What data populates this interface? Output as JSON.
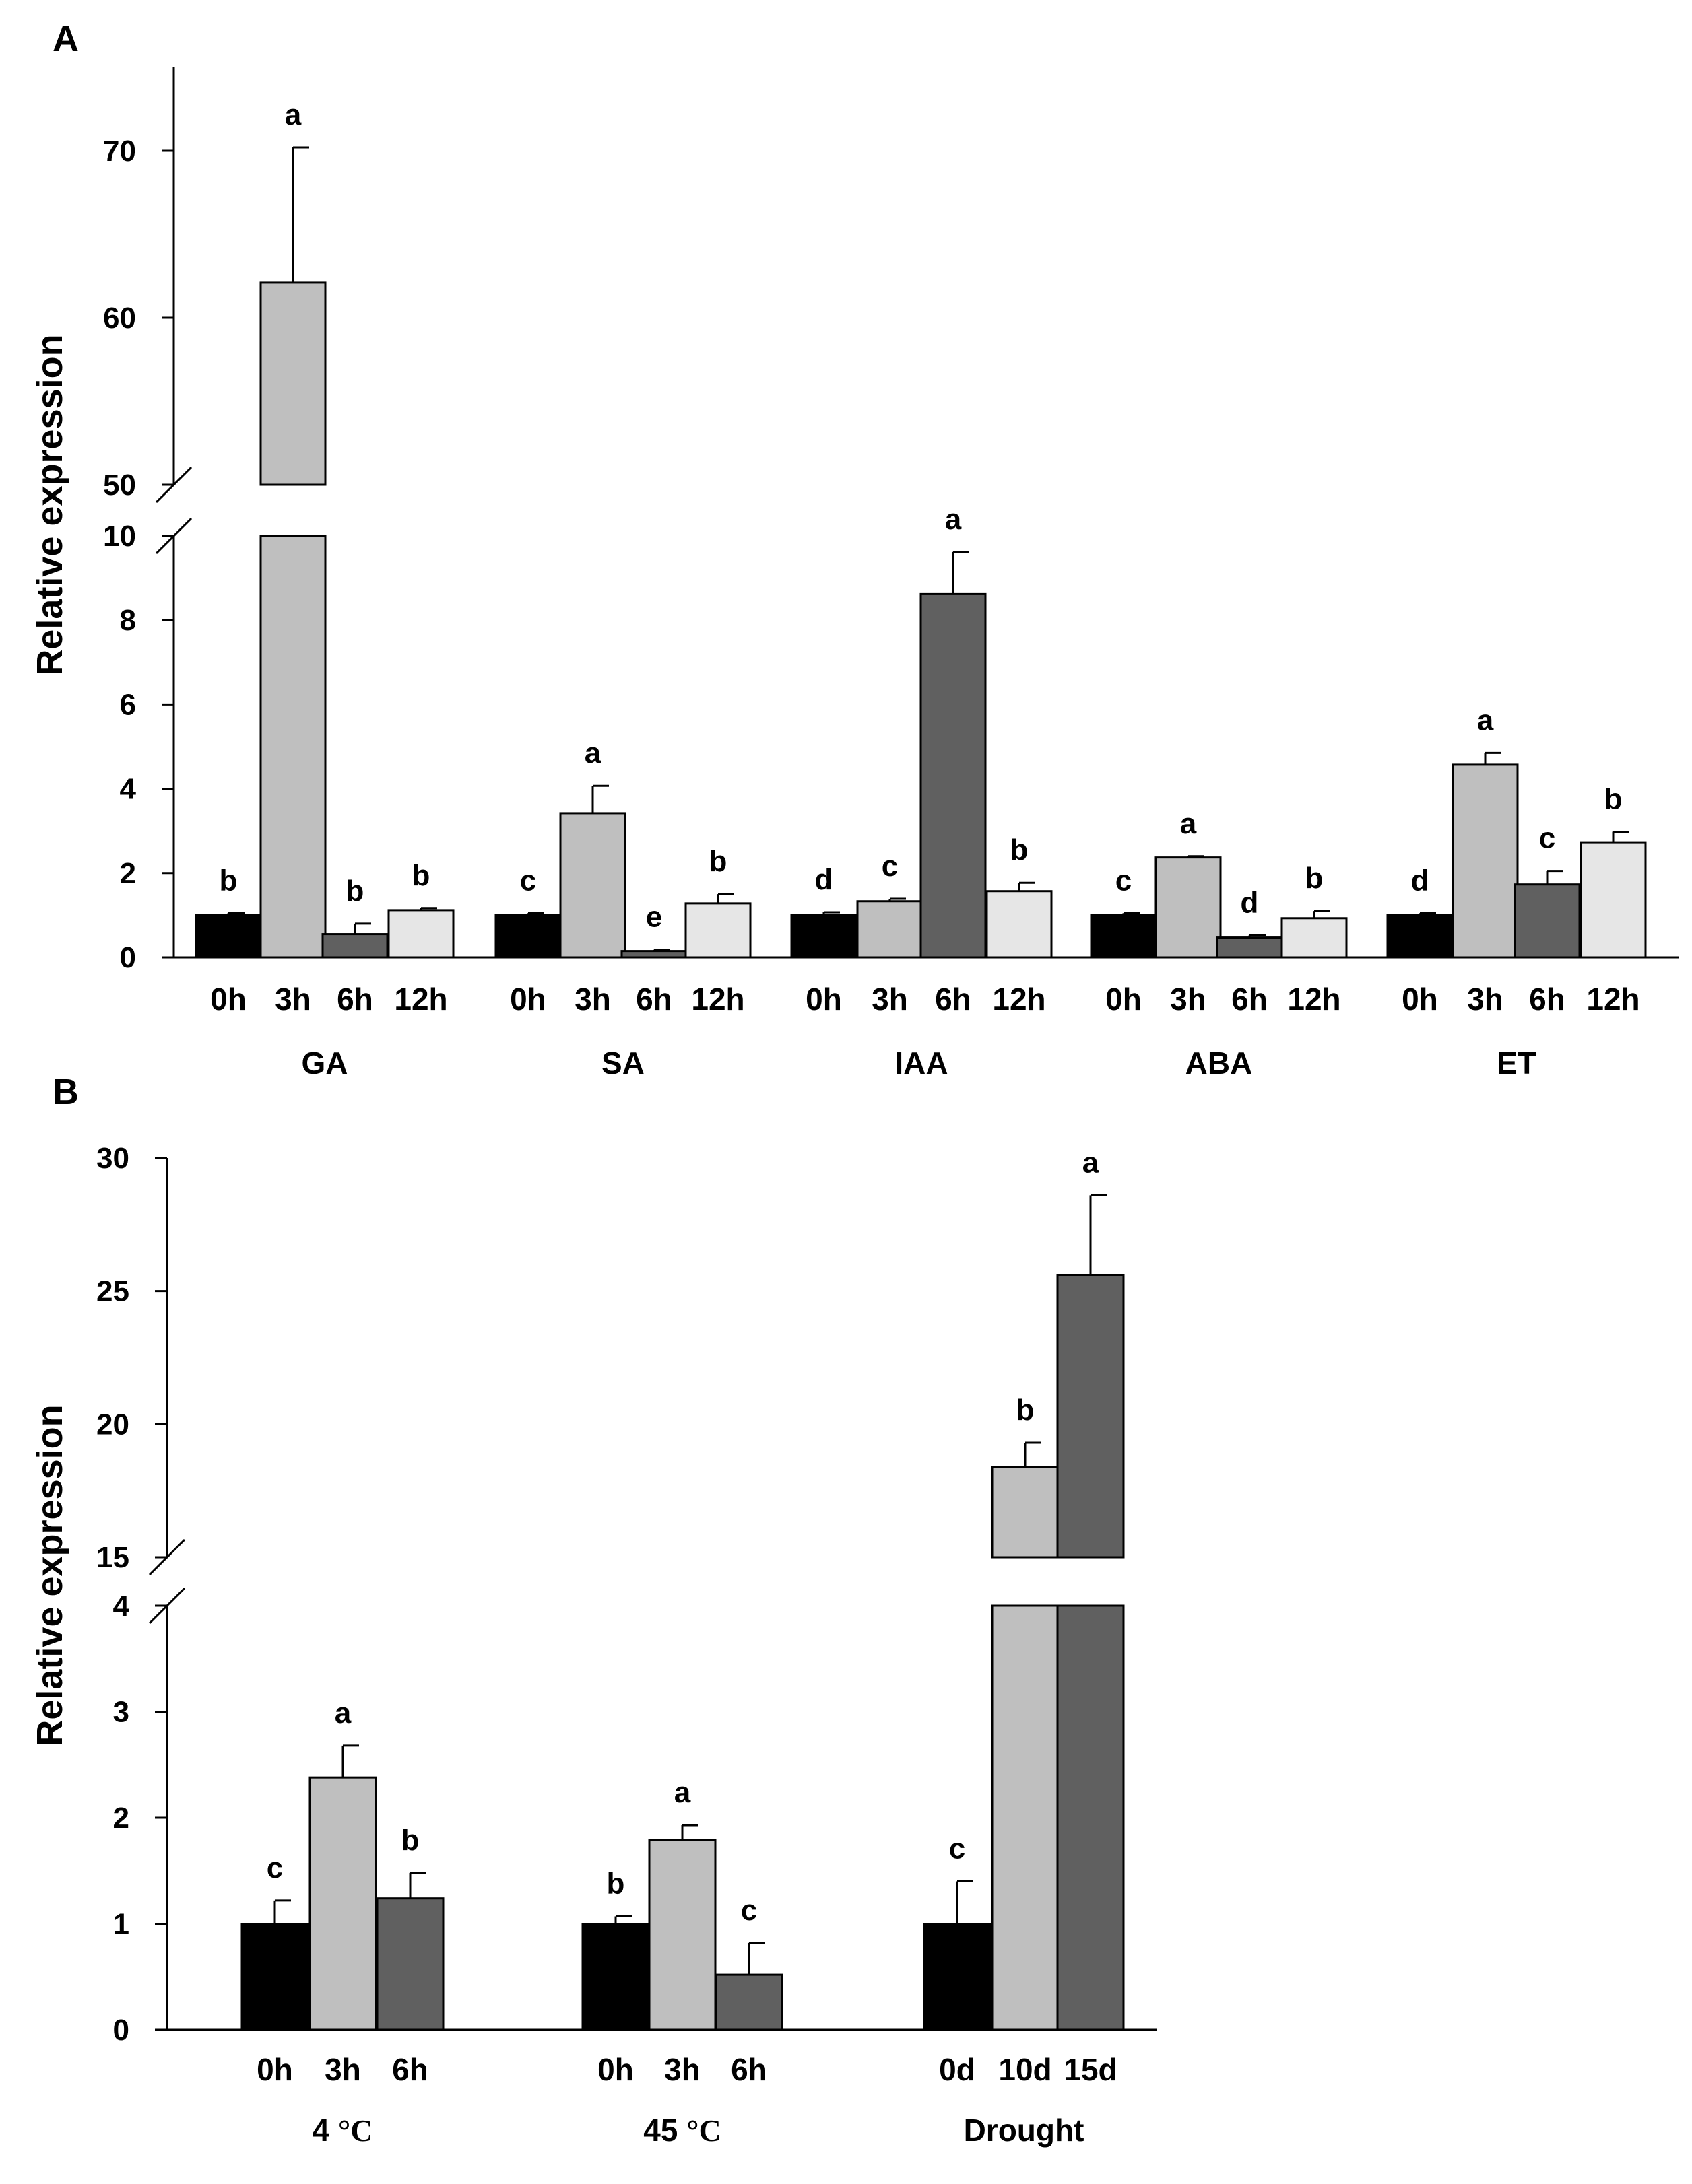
{
  "chart_data": [
    {
      "type": "bar",
      "panel_label": "A",
      "ylabel": "Relative expression",
      "axis_break": {
        "lower_range": [
          0,
          10
        ],
        "upper_range": [
          50,
          75
        ]
      },
      "lower_ticks": [
        "0",
        "2",
        "4",
        "6",
        "8",
        "10"
      ],
      "upper_ticks": [
        "50",
        "60",
        "70"
      ],
      "colors": {
        "0h": "#000000",
        "3h": "#bfbfbf",
        "6h": "#606060",
        "12h": "#e6e6e6"
      },
      "groups": [
        {
          "name": "GA",
          "bars": [
            {
              "label": "0h",
              "value": 1.0,
              "error": 0.05,
              "sig": "b"
            },
            {
              "label": "3h",
              "value": 62.1,
              "error": 8.1,
              "sig": "a"
            },
            {
              "label": "6h",
              "value": 0.55,
              "error": 0.25,
              "sig": "b"
            },
            {
              "label": "12h",
              "value": 1.12,
              "error": 0.05,
              "sig": "b"
            }
          ]
        },
        {
          "name": "SA",
          "bars": [
            {
              "label": "0h",
              "value": 1.0,
              "error": 0.05,
              "sig": "c"
            },
            {
              "label": "3h",
              "value": 3.42,
              "error": 0.65,
              "sig": "a"
            },
            {
              "label": "6h",
              "value": 0.15,
              "error": 0.03,
              "sig": "e"
            },
            {
              "label": "12h",
              "value": 1.28,
              "error": 0.22,
              "sig": "b"
            }
          ]
        },
        {
          "name": "IAA",
          "bars": [
            {
              "label": "0h",
              "value": 1.0,
              "error": 0.07,
              "sig": "d"
            },
            {
              "label": "3h",
              "value": 1.33,
              "error": 0.06,
              "sig": "c"
            },
            {
              "label": "6h",
              "value": 8.62,
              "error": 1.0,
              "sig": "a"
            },
            {
              "label": "12h",
              "value": 1.57,
              "error": 0.2,
              "sig": "b"
            }
          ]
        },
        {
          "name": "ABA",
          "bars": [
            {
              "label": "0h",
              "value": 1.0,
              "error": 0.05,
              "sig": "c"
            },
            {
              "label": "3h",
              "value": 2.37,
              "error": 0.03,
              "sig": "a"
            },
            {
              "label": "6h",
              "value": 0.47,
              "error": 0.05,
              "sig": "d"
            },
            {
              "label": "12h",
              "value": 0.93,
              "error": 0.17,
              "sig": "b"
            }
          ]
        },
        {
          "name": "ET",
          "bars": [
            {
              "label": "0h",
              "value": 1.0,
              "error": 0.05,
              "sig": "d"
            },
            {
              "label": "3h",
              "value": 4.57,
              "error": 0.28,
              "sig": "a"
            },
            {
              "label": "6h",
              "value": 1.73,
              "error": 0.32,
              "sig": "c"
            },
            {
              "label": "12h",
              "value": 2.73,
              "error": 0.25,
              "sig": "b"
            }
          ]
        }
      ]
    },
    {
      "type": "bar",
      "panel_label": "B",
      "ylabel": "Relative expression",
      "axis_break": {
        "lower_range": [
          0,
          4
        ],
        "upper_range": [
          15,
          30
        ]
      },
      "lower_ticks": [
        "0",
        "1",
        "2",
        "3",
        "4"
      ],
      "upper_ticks": [
        "15",
        "20",
        "25",
        "30"
      ],
      "colors": {
        "first": "#000000",
        "second": "#bfbfbf",
        "third": "#606060"
      },
      "groups": [
        {
          "name_prefix": "4 ",
          "name_unit": "°C",
          "bars": [
            {
              "label": "0h",
              "value": 1.0,
              "error": 0.22,
              "sig": "c"
            },
            {
              "label": "3h",
              "value": 2.38,
              "error": 0.3,
              "sig": "a"
            },
            {
              "label": "6h",
              "value": 1.24,
              "error": 0.24,
              "sig": "b"
            }
          ]
        },
        {
          "name_prefix": "45 ",
          "name_unit": "°C",
          "bars": [
            {
              "label": "0h",
              "value": 1.0,
              "error": 0.07,
              "sig": "b"
            },
            {
              "label": "3h",
              "value": 1.79,
              "error": 0.14,
              "sig": "a"
            },
            {
              "label": "6h",
              "value": 0.52,
              "error": 0.3,
              "sig": "c"
            }
          ]
        },
        {
          "name_prefix": "Drought",
          "name_unit": "",
          "bars": [
            {
              "label": "0d",
              "value": 1.0,
              "error": 0.4,
              "sig": "c"
            },
            {
              "label": "10d",
              "value": 18.4,
              "error": 0.9,
              "sig": "b"
            },
            {
              "label": "15d",
              "value": 25.6,
              "error": 3.0,
              "sig": "a"
            }
          ]
        }
      ]
    }
  ]
}
